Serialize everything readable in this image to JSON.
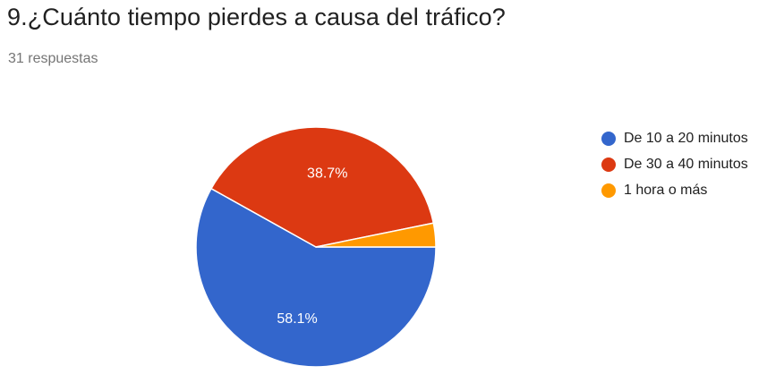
{
  "question": {
    "title": "9.¿Cuánto tiempo pierdes a causa del tráfico?",
    "response_count": "31 respuestas"
  },
  "chart_data": {
    "type": "pie",
    "title": "9.¿Cuánto tiempo pierdes a causa del tráfico?",
    "categories": [
      "De 10 a 20 minutos",
      "De 30 a 40 minutos",
      "1 hora o más"
    ],
    "values": [
      58.1,
      38.7,
      3.2
    ],
    "slice_labels": [
      "58.1%",
      "38.7%",
      ""
    ],
    "colors": [
      "#3366cc",
      "#dc3912",
      "#ff9900"
    ],
    "legend_position": "right"
  }
}
